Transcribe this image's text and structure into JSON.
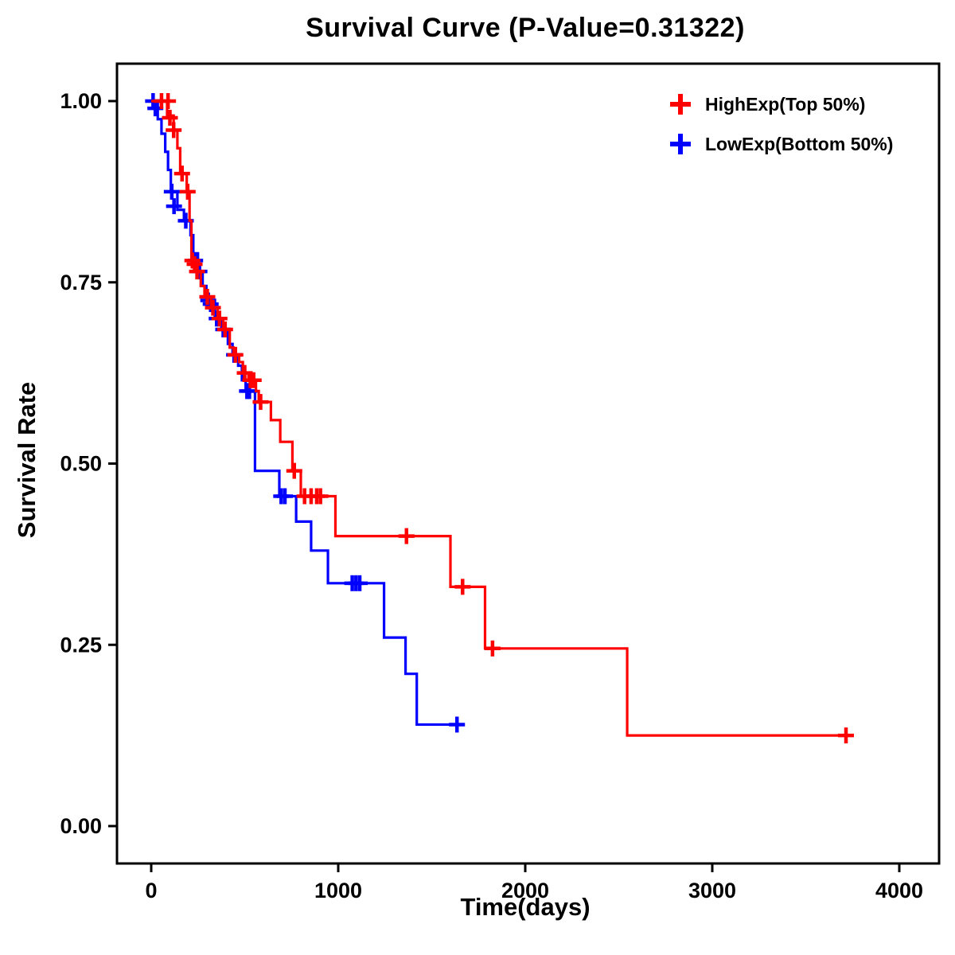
{
  "chart_data": {
    "type": "line",
    "subtype": "kaplan-meier-step",
    "title": "Survival Curve (P-Value=0.31322)",
    "p_value_text": "P-Value=0.31322",
    "xlabel": "Time(days)",
    "ylabel": "Survival Rate",
    "xlim": [
      0,
      4000
    ],
    "ylim": [
      0.0,
      1.0
    ],
    "xticks": [
      0,
      1000,
      2000,
      3000,
      4000
    ],
    "yticks": [
      0.0,
      0.25,
      0.5,
      0.75,
      1.0
    ],
    "ytick_labels": [
      "0.00",
      "0.25",
      "0.50",
      "0.75",
      "1.00"
    ],
    "grid": false,
    "legend_position": "top-right",
    "frame_color": "#000000",
    "series": [
      {
        "name": "LowExp(Bottom 50%)",
        "color": "#0000FF",
        "start": [
          0,
          1.0
        ],
        "end_time": 1660,
        "steps": [
          [
            35,
            0.975
          ],
          [
            55,
            0.955
          ],
          [
            75,
            0.93
          ],
          [
            90,
            0.905
          ],
          [
            105,
            0.875
          ],
          [
            140,
            0.85
          ],
          [
            175,
            0.835
          ],
          [
            210,
            0.815
          ],
          [
            225,
            0.79
          ],
          [
            250,
            0.765
          ],
          [
            275,
            0.745
          ],
          [
            295,
            0.725
          ],
          [
            340,
            0.7
          ],
          [
            375,
            0.685
          ],
          [
            410,
            0.665
          ],
          [
            435,
            0.65
          ],
          [
            465,
            0.635
          ],
          [
            485,
            0.615
          ],
          [
            505,
            0.6
          ],
          [
            555,
            0.49
          ],
          [
            685,
            0.455
          ],
          [
            775,
            0.42
          ],
          [
            855,
            0.38
          ],
          [
            945,
            0.335
          ],
          [
            1245,
            0.26
          ],
          [
            1360,
            0.21
          ],
          [
            1420,
            0.14
          ]
        ],
        "censors": [
          [
            10,
            1.0
          ],
          [
            22,
            0.99
          ],
          [
            110,
            0.875
          ],
          [
            122,
            0.855
          ],
          [
            185,
            0.835
          ],
          [
            235,
            0.78
          ],
          [
            258,
            0.765
          ],
          [
            305,
            0.725
          ],
          [
            318,
            0.72
          ],
          [
            350,
            0.7
          ],
          [
            385,
            0.685
          ],
          [
            443,
            0.65
          ],
          [
            512,
            0.6
          ],
          [
            525,
            0.6
          ],
          [
            695,
            0.455
          ],
          [
            715,
            0.455
          ],
          [
            1075,
            0.335
          ],
          [
            1095,
            0.335
          ],
          [
            1115,
            0.335
          ],
          [
            1635,
            0.14
          ]
        ]
      },
      {
        "name": "HighExp(Top 50%)",
        "color": "#FF0000",
        "start": [
          0,
          1.0
        ],
        "end_time": 3725,
        "steps": [
          [
            85,
            0.98
          ],
          [
            120,
            0.96
          ],
          [
            140,
            0.935
          ],
          [
            155,
            0.9
          ],
          [
            190,
            0.875
          ],
          [
            205,
            0.835
          ],
          [
            215,
            0.78
          ],
          [
            235,
            0.765
          ],
          [
            265,
            0.745
          ],
          [
            285,
            0.73
          ],
          [
            320,
            0.715
          ],
          [
            355,
            0.7
          ],
          [
            385,
            0.685
          ],
          [
            420,
            0.66
          ],
          [
            440,
            0.65
          ],
          [
            470,
            0.64
          ],
          [
            490,
            0.625
          ],
          [
            520,
            0.615
          ],
          [
            560,
            0.6
          ],
          [
            575,
            0.585
          ],
          [
            640,
            0.56
          ],
          [
            690,
            0.53
          ],
          [
            755,
            0.49
          ],
          [
            800,
            0.455
          ],
          [
            985,
            0.4
          ],
          [
            1600,
            0.33
          ],
          [
            1785,
            0.245
          ],
          [
            2545,
            0.125
          ]
        ],
        "censors": [
          [
            55,
            1.0
          ],
          [
            90,
            1.0
          ],
          [
            100,
            0.977
          ],
          [
            120,
            0.96
          ],
          [
            165,
            0.9
          ],
          [
            195,
            0.875
          ],
          [
            220,
            0.78
          ],
          [
            232,
            0.775
          ],
          [
            245,
            0.765
          ],
          [
            300,
            0.73
          ],
          [
            330,
            0.715
          ],
          [
            365,
            0.7
          ],
          [
            395,
            0.685
          ],
          [
            450,
            0.65
          ],
          [
            500,
            0.625
          ],
          [
            530,
            0.615
          ],
          [
            548,
            0.615
          ],
          [
            585,
            0.585
          ],
          [
            765,
            0.49
          ],
          [
            820,
            0.455
          ],
          [
            855,
            0.455
          ],
          [
            885,
            0.455
          ],
          [
            905,
            0.455
          ],
          [
            1365,
            0.4
          ],
          [
            1665,
            0.33
          ],
          [
            1825,
            0.245
          ],
          [
            3715,
            0.125
          ]
        ]
      }
    ],
    "legend": {
      "entries": [
        {
          "label": "HighExp(Top 50%)",
          "color": "#FF0000"
        },
        {
          "label": "LowExp(Bottom 50%)",
          "color": "#0000FF"
        }
      ]
    }
  }
}
